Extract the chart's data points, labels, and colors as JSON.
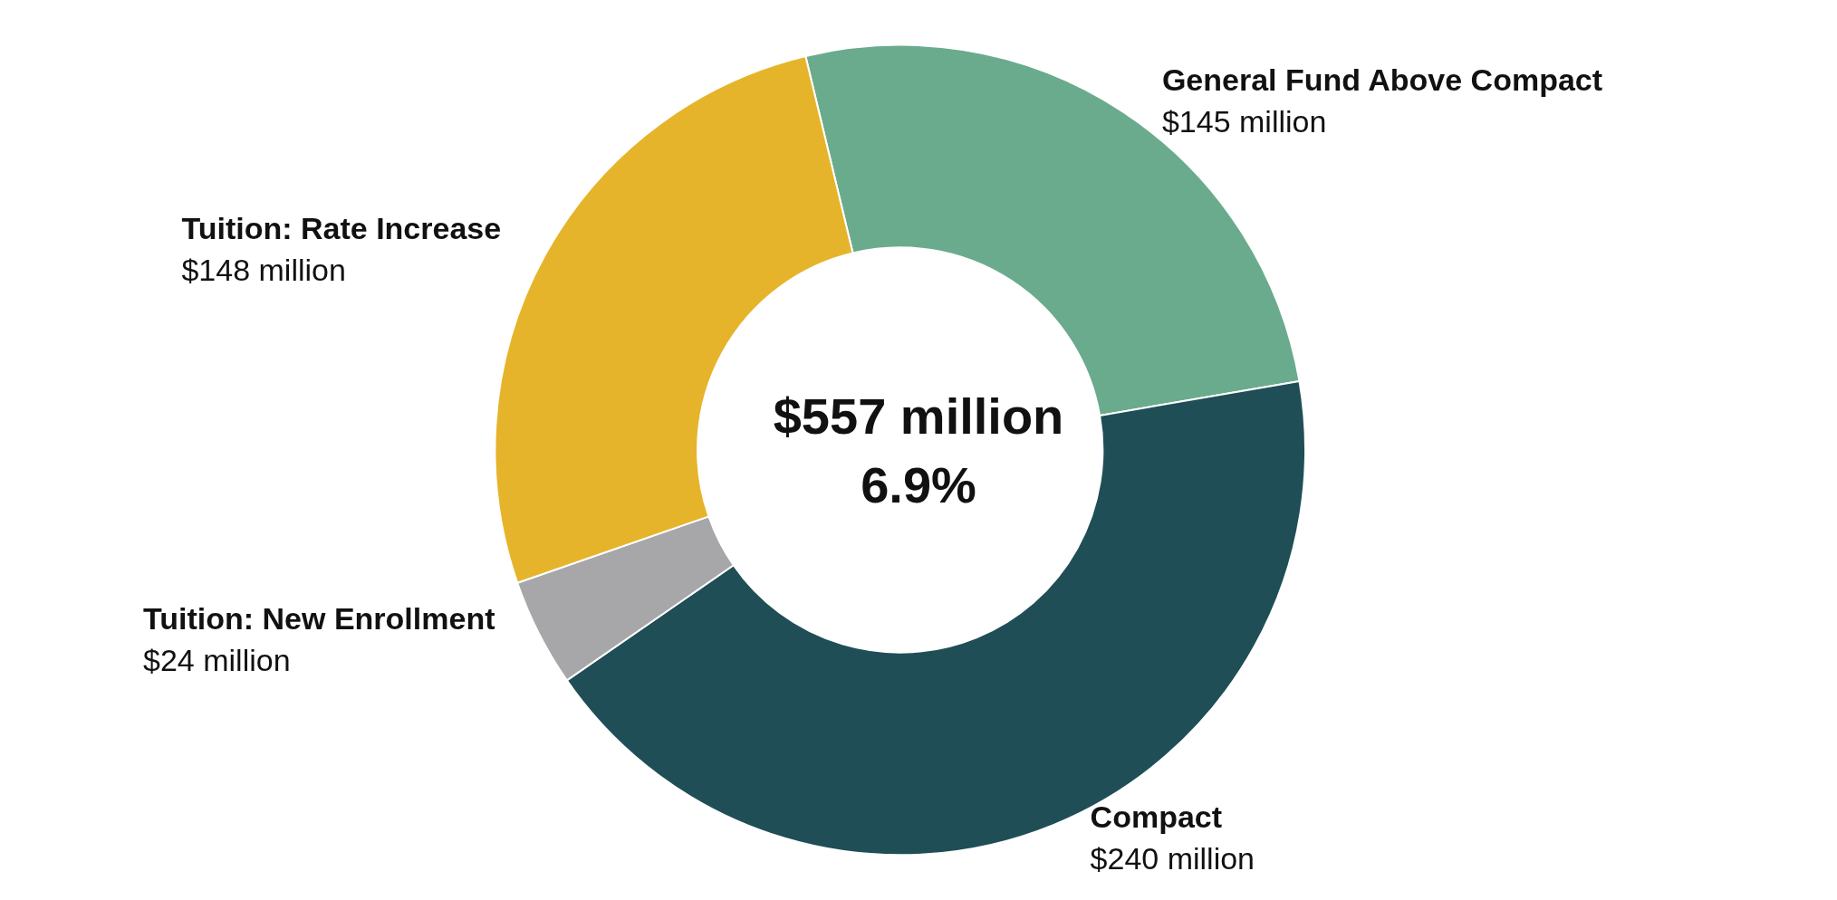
{
  "chart_data": {
    "type": "donut",
    "categories": [
      "General Fund Above Compact",
      "Compact",
      "Tuition: New Enrollment",
      "Tuition: Rate Increase"
    ],
    "values": [
      145,
      240,
      24,
      148
    ],
    "colors": [
      "#6aab8e",
      "#1f4e56",
      "#a7a7aa",
      "#e6b42a"
    ],
    "value_labels": [
      "$145 million",
      "$240 million",
      "$24 million",
      "$148 million"
    ],
    "annotations": [
      "$557 million",
      "6.9%"
    ],
    "legend": false
  }
}
